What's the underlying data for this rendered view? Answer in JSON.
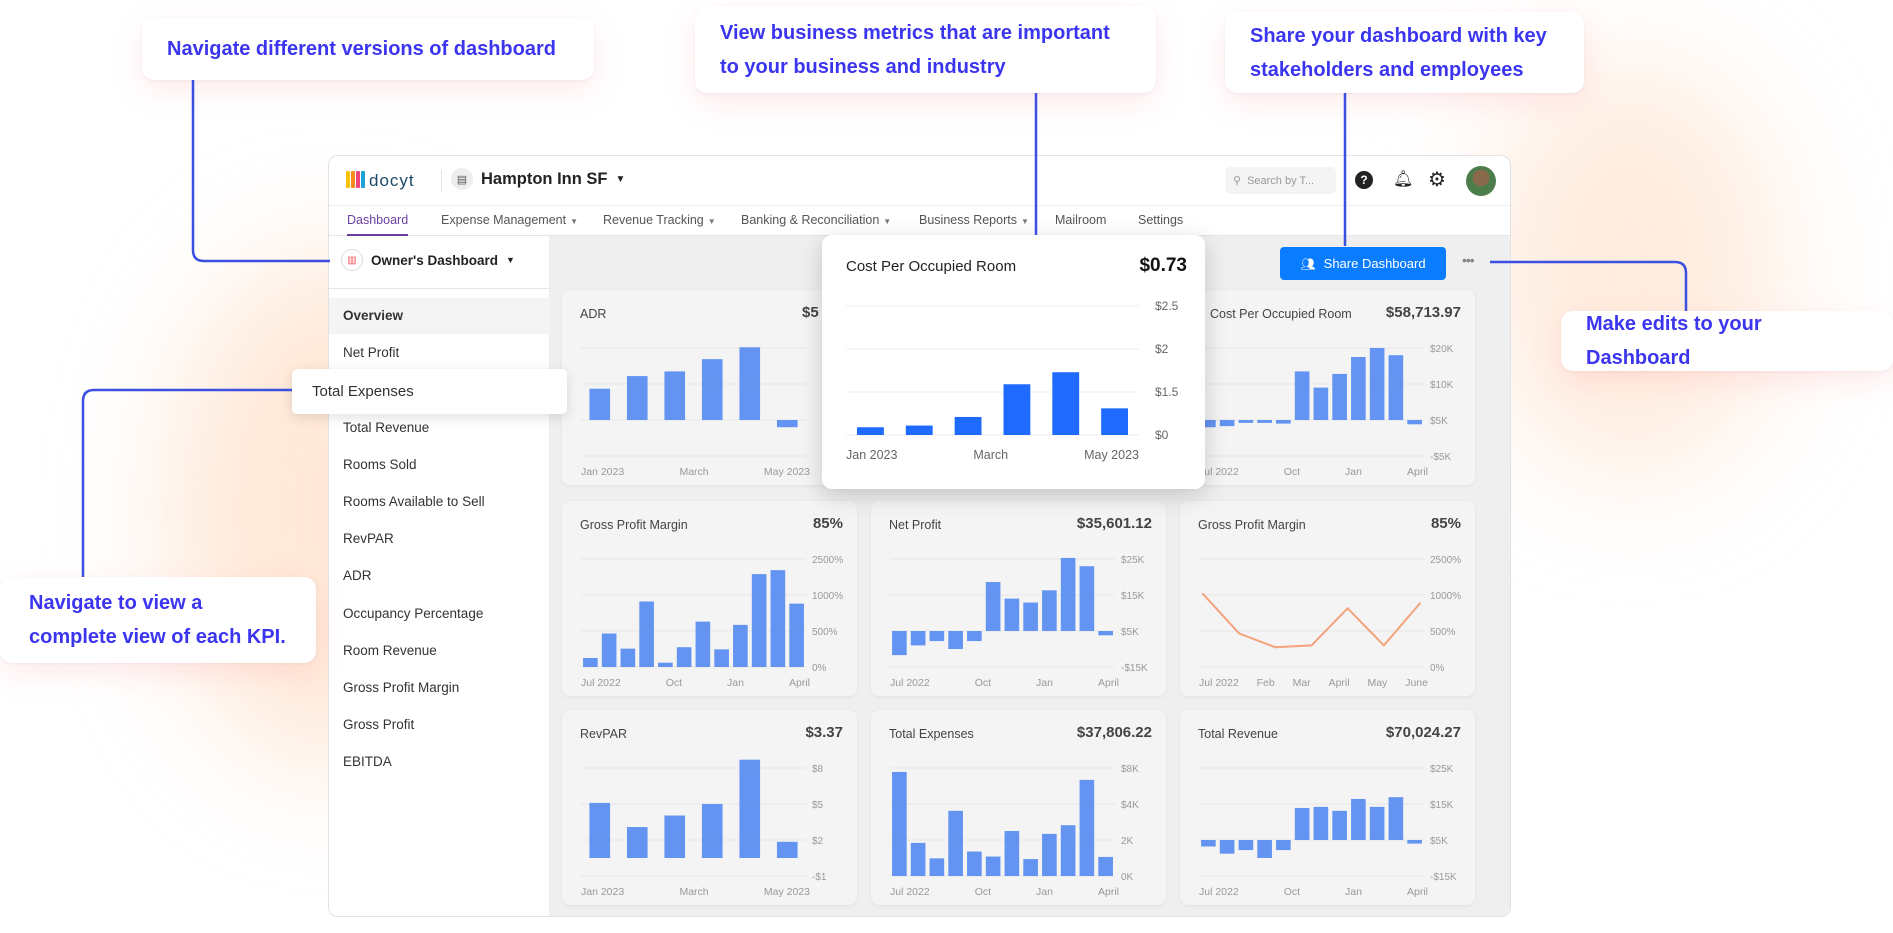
{
  "annotations": {
    "versions": "Navigate different versions of dashboard",
    "metrics": "View business metrics that are important to your business and industry",
    "share": "Share your dashboard with key stakeholders and employees",
    "edits": "Make edits to your Dashboard",
    "kpi": "Navigate to view a complete view of each KPI."
  },
  "header": {
    "logo_text": "docyt",
    "business": "Hampton Inn SF",
    "search_placeholder": "Search by T...",
    "avatar": "user-avatar"
  },
  "nav": [
    {
      "label": "Dashboard",
      "active": true,
      "dropdown": false
    },
    {
      "label": "Expense Management",
      "dropdown": true
    },
    {
      "label": "Revenue Tracking",
      "dropdown": true
    },
    {
      "label": "Banking & Reconciliation",
      "dropdown": true
    },
    {
      "label": "Business Reports",
      "dropdown": true
    },
    {
      "label": "Mailroom",
      "dropdown": false
    },
    {
      "label": "Settings",
      "dropdown": false
    }
  ],
  "sidebar": {
    "dashboard_selector": "Owner's Dashboard",
    "items": [
      "Overview",
      "Net Profit",
      "Total Expenses",
      "Total Revenue",
      "Rooms Sold",
      "Rooms Available to Sell",
      "RevPAR",
      "ADR",
      "Occupancy Percentage",
      "Room Revenue",
      "Gross Profit Margin",
      "Gross Profit",
      "EBITDA"
    ],
    "hover_item": "Total Expenses"
  },
  "toolbar": {
    "share_label": "Share Dashboard"
  },
  "colors": {
    "accent": "#3b35f0",
    "bar": "#5b8ef0",
    "popup_bar": "#1f6bff",
    "line": "#f4a27c",
    "share": "#0a7cff",
    "nav_active": "#6b3fa0"
  },
  "chart_data": [
    {
      "id": "adr",
      "type": "bar",
      "title": "ADR",
      "value": "$5",
      "ticks": [
        "",
        "",
        "",
        ""
      ],
      "step": 1,
      "baseline": 0,
      "baseline_index": 2,
      "values": [
        0.87,
        1.22,
        1.35,
        1.69,
        2.02,
        -0.2
      ],
      "xlabels": [
        "Jan 2023",
        "March",
        "May 2023"
      ]
    },
    {
      "id": "cpor",
      "type": "bar",
      "title": "Cost Per Occupied Room",
      "value": "$58,713.97",
      "ticks": [
        "$20K",
        "$10K",
        "$5K",
        "-$5K"
      ],
      "step": 5000,
      "baseline": 5000,
      "baseline_index": 2,
      "values": [
        4000,
        4150,
        4600,
        4600,
        4500,
        11750,
        9500,
        11400,
        13750,
        15000,
        14000,
        4400
      ],
      "xlabels": [
        "Jul 2022",
        "Oct",
        "Jan",
        "April"
      ]
    },
    {
      "id": "gpm",
      "type": "bar",
      "title": "Gross Profit Margin",
      "value": "85%",
      "ticks": [
        "2500%",
        "1000%",
        "500%",
        "0%"
      ],
      "step": 500,
      "baseline": 0,
      "baseline_index": 3,
      "values": [
        125,
        465,
        255,
        910,
        60,
        275,
        630,
        245,
        585,
        1290,
        1345,
        880
      ],
      "xlabels": [
        "Jul 2022",
        "Oct",
        "Jan",
        "April"
      ]
    },
    {
      "id": "np",
      "type": "bar",
      "title": "Net Profit",
      "value": "$35,601.12",
      "ticks": [
        "$25K",
        "$15K",
        "$5K",
        "-$15K"
      ],
      "step": 10000,
      "baseline": 5000,
      "baseline_index": 2,
      "values": [
        -1700,
        1000,
        2200,
        0,
        2200,
        18600,
        14000,
        12900,
        16300,
        25300,
        23000,
        3800
      ],
      "xlabels": [
        "Jul 2022",
        "Oct",
        "Jan",
        "April"
      ]
    },
    {
      "id": "gpml",
      "type": "line",
      "title": "Gross Profit Margin",
      "value": "85%",
      "ticks": [
        "2500%",
        "1000%",
        "500%",
        "0%"
      ],
      "step": 500,
      "baseline": 0,
      "baseline_index": 3,
      "values": [
        1015,
        465,
        275,
        300,
        815,
        300,
        885
      ],
      "xlabels": [
        "Jul 2022",
        "Feb",
        "Mar",
        "April",
        "May",
        "June"
      ]
    },
    {
      "id": "revpar",
      "type": "bar",
      "title": "RevPAR",
      "value": "$3.37",
      "ticks": [
        "$8",
        "$5",
        "$2",
        "-$1"
      ],
      "step": 3,
      "baseline": 0.5,
      "baseline_index": 2.5,
      "values": [
        5.09,
        3.08,
        4.04,
        5.0,
        8.69,
        1.85
      ],
      "xlabels": [
        "Jan 2023",
        "March",
        "May 2023"
      ]
    },
    {
      "id": "te",
      "type": "bar",
      "title": "Total Expenses",
      "value": "$37,806.22",
      "ticks": [
        "$8K",
        "$4K",
        "2K",
        "0K"
      ],
      "step": 2000,
      "baseline": 0,
      "baseline_index": 3,
      "values": [
        5780,
        1840,
        980,
        3620,
        1360,
        1080,
        2500,
        940,
        2340,
        2820,
        5340,
        1060
      ],
      "xlabels": [
        "Jul 2022",
        "Oct",
        "Jan",
        "April"
      ]
    },
    {
      "id": "tr",
      "type": "bar",
      "title": "Total Revenue",
      "value": "$70,024.27",
      "ticks": [
        "$25K",
        "$15K",
        "$5K",
        "-$15K"
      ],
      "step": 10000,
      "baseline": 5000,
      "baseline_index": 2,
      "values": [
        3200,
        1200,
        2200,
        0,
        2200,
        13900,
        14200,
        13100,
        16400,
        14200,
        16900,
        4000
      ],
      "xlabels": [
        "Jul 2022",
        "Oct",
        "Jan",
        "April"
      ]
    },
    {
      "id": "popup",
      "type": "bar",
      "title": "Cost Per Occupied Room",
      "value": "$0.73",
      "ticks": [
        "$2.5",
        "$2",
        "$1.5",
        "$0"
      ],
      "step": 0.5,
      "baseline": 0,
      "baseline_index": 3,
      "values": [
        0.09,
        0.11,
        0.21,
        0.59,
        0.73,
        0.31
      ],
      "xlabels": [
        "Jan 2023",
        "March",
        "May 2023"
      ]
    }
  ]
}
